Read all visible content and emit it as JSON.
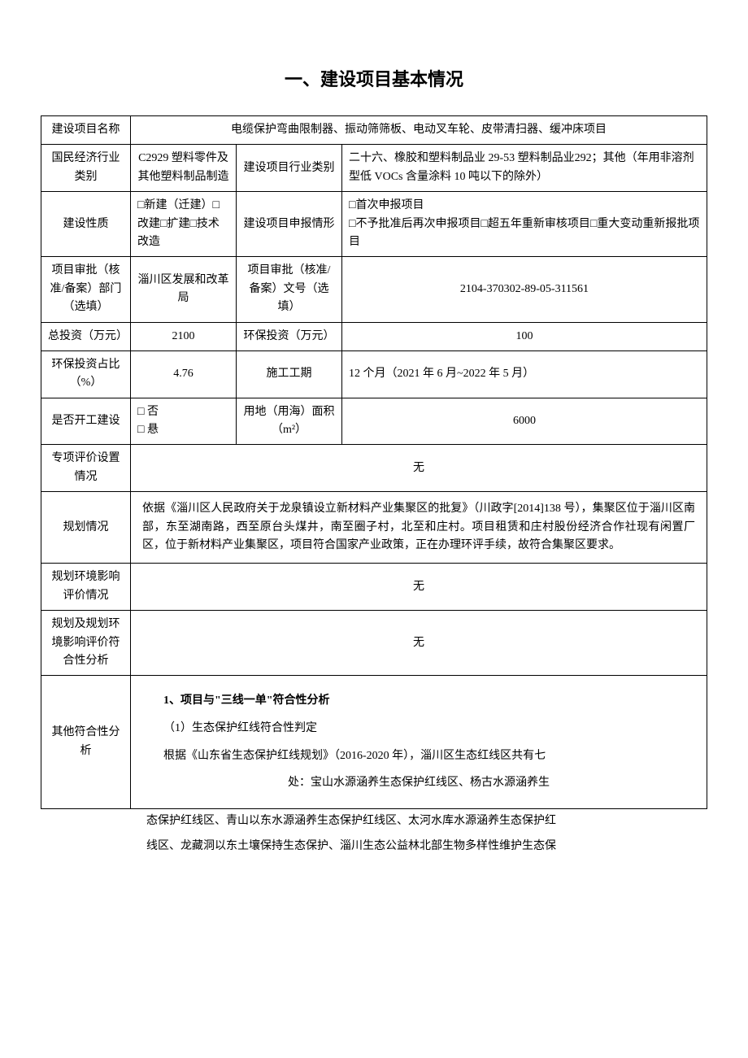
{
  "page_title": "一、建设项目基本情况",
  "rows": {
    "r1": {
      "label": "建设项目名称",
      "value": "电缆保护弯曲限制器、振动筛筛板、电动叉车轮、皮带清扫器、缓冲床项目"
    },
    "r2": {
      "label1": "国民经济行业类别",
      "value1": "C2929 塑料零件及其他塑料制品制造",
      "label2": "建设项目行业类别",
      "value2": "二十六、橡胶和塑料制品业 29-53 塑料制品业292；其他（年用非溶剂型低 VOCs 含量涂料 10 吨以下的除外）"
    },
    "r3": {
      "label1": "建设性质",
      "value1": "□新建（迁建）□改建□扩建□技术改造",
      "label2": "建设项目申报情形",
      "value2": "□首次申报项目\n□不予批准后再次申报项目□超五年重新审核项目□重大变动重新报批项目"
    },
    "r4": {
      "label1": "项目审批（核准/备案）部门（选填）",
      "value1": "淄川区发展和改革局",
      "label2": "项目审批（核准/备案）文号（选填）",
      "value2": "2104-370302-89-05-311561"
    },
    "r5": {
      "label1": "总投资（万元）",
      "value1": "2100",
      "label2": "环保投资（万元）",
      "value2": "100"
    },
    "r6": {
      "label1": "环保投资占比（%）",
      "value1": "4.76",
      "label2": "施工工期",
      "value2": "12 个月（2021 年 6 月~2022 年 5 月）"
    },
    "r7": {
      "label1": "是否开工建设",
      "value1": "□ 否\n□ 悬",
      "label2": "用地（用海）面积（m²）",
      "value2": "6000"
    },
    "r8": {
      "label": "专项评价设置情况",
      "value": "无"
    },
    "r9": {
      "label": "规划情况",
      "value": "依据《淄川区人民政府关于龙泉镇设立新材料产业集聚区的批复》（川政字[2014]138 号），集聚区位于淄川区南部，东至湖南路，西至原台头煤井，南至圈子村，北至和庄村。项目租赁和庄村股份经济合作社现有闲置厂区，位于新材料产业集聚区，项目符合国家产业政策，正在办理环评手续，故符合集聚区要求。"
    },
    "r10": {
      "label": "规划环境影响评价情况",
      "value": "无"
    },
    "r11": {
      "label": "规划及规划环境影响评价符合性分析",
      "value": "无"
    },
    "r12": {
      "label": "其他符合性分析",
      "line1": "1、项目与\"三线一单\"符合性分析",
      "line2": "（1）生态保护红线符合性判定",
      "line3": "根据《山东省生态保护红线规划》（2016-2020 年），淄川区生态红线区共有七",
      "line4": "处：宝山水源涵养生态保护红线区、杨古水源涵养生"
    }
  },
  "overflow": {
    "p1": "态保护红线区、青山以东水源涵养生态保护红线区、太河水库水源涵养生态保护红",
    "p2": "线区、龙藏洞以东土壤保持生态保护、淄川生态公益林北部生物多样性维护生态保"
  }
}
